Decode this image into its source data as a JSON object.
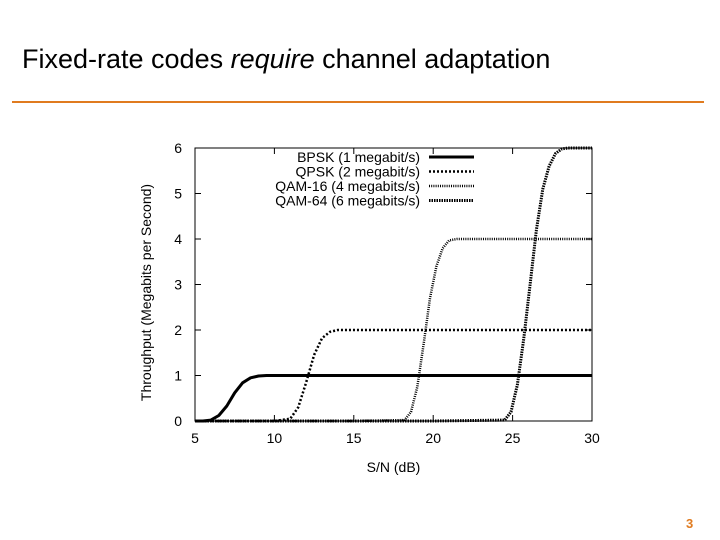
{
  "slide": {
    "title_before": "Fixed-rate codes ",
    "title_emph": "require",
    "title_after": " channel adaptation",
    "page_number": "3",
    "accent_color": "#E07B1F"
  },
  "chart_data": {
    "type": "line",
    "title": "",
    "xlabel": "S/N (dB)",
    "ylabel": "Throughput (Megabits per Second)",
    "xlim": [
      5,
      30
    ],
    "ylim": [
      0,
      6
    ],
    "xticks": [
      5,
      10,
      15,
      20,
      25,
      30
    ],
    "yticks": [
      0,
      1,
      2,
      3,
      4,
      5,
      6
    ],
    "grid": false,
    "legend_position": "top-right",
    "series": [
      {
        "name": "BPSK (1 megabit/s)",
        "style": "solid",
        "x": [
          5,
          5.5,
          6,
          6.5,
          7,
          7.5,
          8,
          8.5,
          9,
          9.5,
          10,
          15,
          20,
          25,
          30
        ],
        "y": [
          0,
          0,
          0.02,
          0.12,
          0.33,
          0.62,
          0.84,
          0.95,
          0.99,
          1,
          1,
          1,
          1,
          1,
          1
        ]
      },
      {
        "name": "QPSK (2 megabit/s)",
        "style": "dotted",
        "x": [
          5,
          10,
          11,
          11.5,
          12,
          12.5,
          13,
          13.5,
          14,
          14.5,
          15,
          20,
          25,
          30
        ],
        "y": [
          0,
          0,
          0.05,
          0.3,
          0.85,
          1.45,
          1.82,
          1.96,
          2,
          2,
          2,
          2,
          2,
          2
        ]
      },
      {
        "name": "QAM-16 (4 megabits/s)",
        "style": "dense-dotted",
        "x": [
          5,
          15,
          18.2,
          18.6,
          19,
          19.4,
          19.8,
          20.2,
          20.6,
          21,
          21.5,
          22,
          25,
          30
        ],
        "y": [
          0,
          0,
          0.02,
          0.2,
          0.75,
          1.7,
          2.7,
          3.4,
          3.8,
          3.97,
          4,
          4,
          4,
          4
        ],
        "note": "flat at 0 from 5 to ~18"
      },
      {
        "name": "QAM-64 (6 megabits/s)",
        "style": "dashed-dotted",
        "x": [
          5,
          20,
          24.5,
          24.9,
          25.3,
          25.7,
          26.1,
          26.5,
          26.9,
          27.3,
          27.7,
          28.1,
          28.5,
          29,
          30
        ],
        "y": [
          0,
          0,
          0.02,
          0.2,
          0.8,
          1.8,
          3.0,
          4.2,
          5.1,
          5.6,
          5.88,
          5.98,
          6,
          6,
          6
        ]
      }
    ]
  }
}
